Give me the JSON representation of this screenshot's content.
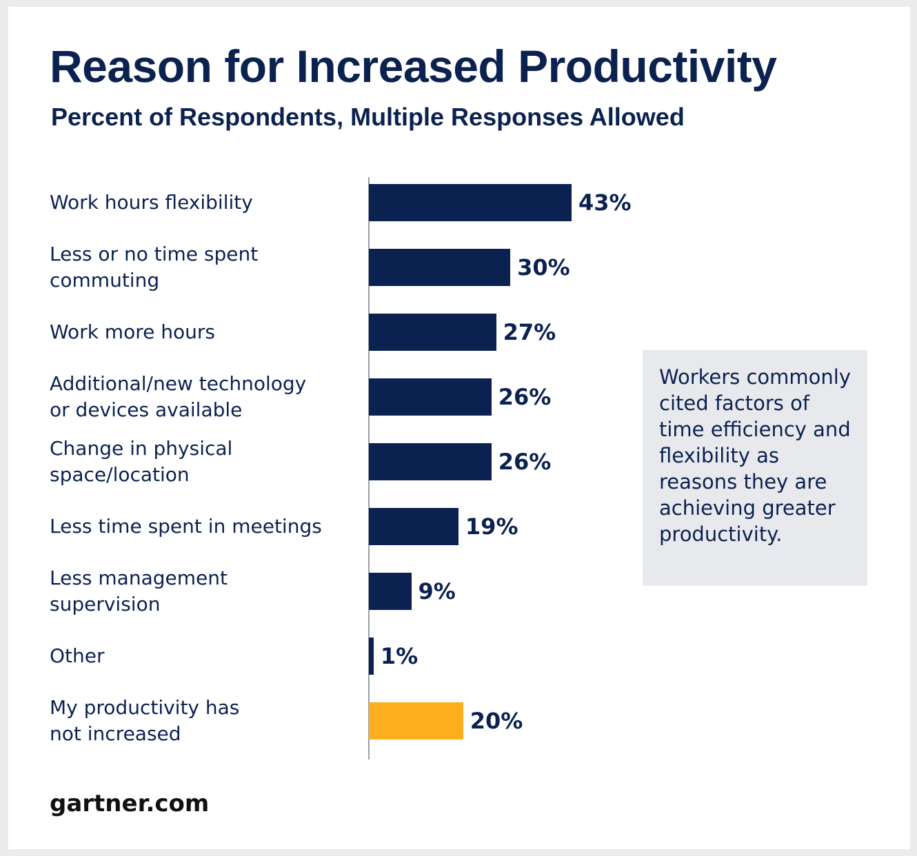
{
  "title": "Reason for Increased Productivity",
  "subtitle": "Percent of Respondents, Multiple Responses Allowed",
  "note": "Workers commonly cited factors of time efficiency and flexibility as reasons they are achieving greater productivity.",
  "source": "gartner.com",
  "colors": {
    "primary_bar": "#0b2150",
    "highlight_bar": "#fbaf1f",
    "text": "#0b2150"
  },
  "chart_data": {
    "type": "bar",
    "orientation": "horizontal",
    "title": "Reason for Increased Productivity",
    "subtitle": "Percent of Respondents, Multiple Responses Allowed",
    "xlabel": "",
    "ylabel": "",
    "xlim": [
      0,
      43
    ],
    "grid": false,
    "categories": [
      "Work hours flexibility",
      "Less or no time spent\ncommuting",
      "Work more hours",
      "Additional/new technology\nor devices available",
      "Change in physical\nspace/location",
      "Less time spent in meetings",
      "Less management\nsupervision",
      "Other",
      "My productivity has\nnot increased"
    ],
    "values": [
      43,
      30,
      27,
      26,
      26,
      19,
      9,
      1,
      20
    ],
    "labels": [
      "43%",
      "30%",
      "27%",
      "26%",
      "26%",
      "19%",
      "9%",
      "1%",
      "20%"
    ],
    "highlight_index": 8
  }
}
